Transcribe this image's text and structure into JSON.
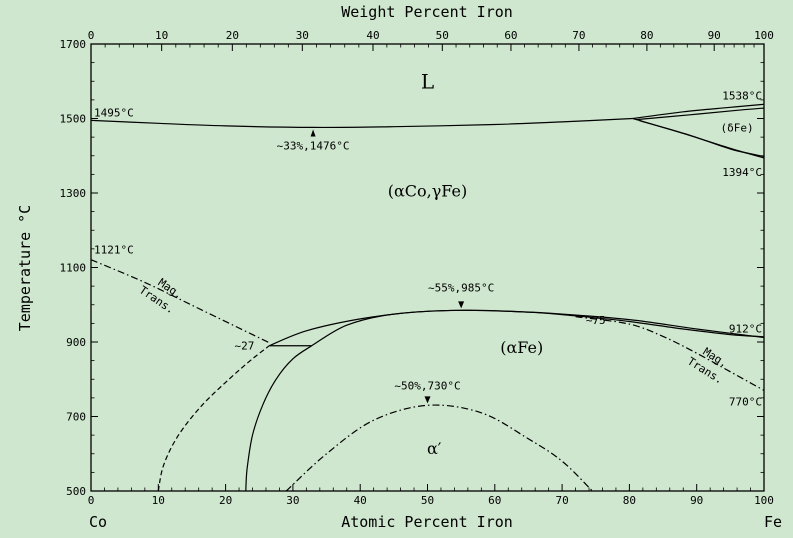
{
  "chart_data": {
    "type": "line",
    "title": "",
    "xlabel_top": "Weight Percent Iron",
    "xlabel_bottom": "Atomic Percent Iron",
    "ylabel": "Temperature °C",
    "x_end_labels": {
      "left": "Co",
      "right": "Fe"
    },
    "xlim": [
      0,
      100
    ],
    "ylim": [
      500,
      1700
    ],
    "x_ticks": [
      0,
      10,
      20,
      30,
      40,
      50,
      60,
      70,
      80,
      90,
      100
    ],
    "top_ticks": [
      0,
      10,
      20,
      30,
      40,
      50,
      60,
      70,
      80,
      90,
      100
    ],
    "top_tick_atomic_positions": [
      0,
      10.5,
      21.0,
      31.4,
      41.9,
      52.2,
      62.4,
      72.5,
      82.6,
      92.6,
      100
    ],
    "y_ticks": [
      500,
      700,
      900,
      1100,
      1300,
      1500,
      1700
    ],
    "series": [
      {
        "style": "solid",
        "x": [
          0,
          10,
          20,
          33,
          45,
          60,
          70,
          80.5
        ],
        "y": [
          1495,
          1487,
          1480,
          1476,
          1478,
          1484,
          1491,
          1500
        ]
      },
      {
        "style": "solid",
        "x": [
          80.5,
          88,
          95,
          100
        ],
        "y": [
          1500,
          1518,
          1530,
          1538
        ]
      },
      {
        "style": "solid",
        "x": [
          81,
          89,
          96,
          100
        ],
        "y": [
          1497,
          1510,
          1522,
          1528
        ]
      },
      {
        "style": "solid",
        "x": [
          80.5,
          88,
          95,
          100
        ],
        "y": [
          1500,
          1460,
          1420,
          1394
        ]
      },
      {
        "style": "solid",
        "x": [
          81.5,
          89,
          95,
          100
        ],
        "y": [
          1494,
          1455,
          1418,
          1398
        ]
      },
      {
        "style": "solid",
        "x": [
          26.5,
          32,
          40,
          48,
          55,
          63,
          70,
          80,
          90,
          100
        ],
        "y": [
          890,
          930,
          962,
          980,
          985,
          982,
          975,
          960,
          935,
          912
        ]
      },
      {
        "style": "solid",
        "x": [
          32.8,
          38,
          45,
          55,
          65,
          72,
          80,
          88,
          95,
          100
        ],
        "y": [
          890,
          945,
          975,
          985,
          980,
          970,
          955,
          935,
          920,
          914
        ]
      },
      {
        "style": "solid",
        "x": [
          26.5,
          32.8
        ],
        "y": [
          890,
          890
        ]
      },
      {
        "style": "solid",
        "x": [
          23,
          23.2,
          24,
          25.5,
          27.5,
          30,
          32.8
        ],
        "y": [
          500,
          560,
          650,
          730,
          800,
          855,
          890
        ]
      },
      {
        "style": "dashed",
        "x": [
          10,
          10.8,
          13,
          16.5,
          20.5,
          24,
          26.5
        ],
        "y": [
          500,
          570,
          650,
          730,
          800,
          855,
          890
        ]
      },
      {
        "style": "dashdot",
        "x": [
          0,
          8,
          16,
          24,
          26.5
        ],
        "y": [
          1121,
          1060,
          990,
          920,
          898
        ]
      },
      {
        "style": "dashdot",
        "x": [
          72,
          80,
          85,
          90,
          95,
          100
        ],
        "y": [
          968,
          948,
          915,
          870,
          820,
          770
        ]
      },
      {
        "style": "dashdot",
        "x": [
          29,
          35,
          42,
          50,
          58,
          65,
          70,
          74.5
        ],
        "y": [
          500,
          600,
          690,
          730,
          710,
          640,
          580,
          500
        ]
      }
    ],
    "annotations": [
      {
        "text": "1495°C",
        "x": 0.3,
        "y": 1495
      },
      {
        "text": "~33%,1476°C",
        "x": 33,
        "y": 1476
      },
      {
        "text": "1538°C",
        "x": 100,
        "y": 1538
      },
      {
        "text": "(δFe)",
        "x": 96,
        "y": 1465
      },
      {
        "text": "1394°C",
        "x": 100,
        "y": 1394
      },
      {
        "text": "1121°C",
        "x": 0.3,
        "y": 1121
      },
      {
        "text": "~55%,985°C",
        "x": 55,
        "y": 985
      },
      {
        "text": "~27",
        "x": 26.5,
        "y": 890
      },
      {
        "text": "~75",
        "x": 75,
        "y": 962
      },
      {
        "text": "912°C",
        "x": 100,
        "y": 912
      },
      {
        "text": "770°C",
        "x": 100,
        "y": 770
      },
      {
        "text": "~50%,730°C",
        "x": 50,
        "y": 730
      },
      {
        "text": "Mag.",
        "x": 11.5,
        "y": 1035
      },
      {
        "text": "Trans.",
        "x": 9.5,
        "y": 1005
      },
      {
        "text": "Mag.",
        "x": 92.5,
        "y": 850
      },
      {
        "text": "Trans.",
        "x": 91,
        "y": 815
      }
    ],
    "phase_labels": [
      {
        "text": "L",
        "x": 50,
        "y": 1580
      },
      {
        "text": "(αCo,γFe)",
        "x": 50,
        "y": 1290
      },
      {
        "text": "(αFe)",
        "x": 64,
        "y": 870
      },
      {
        "text": "α′",
        "x": 51,
        "y": 600
      }
    ],
    "grid": false,
    "legend": "none"
  }
}
